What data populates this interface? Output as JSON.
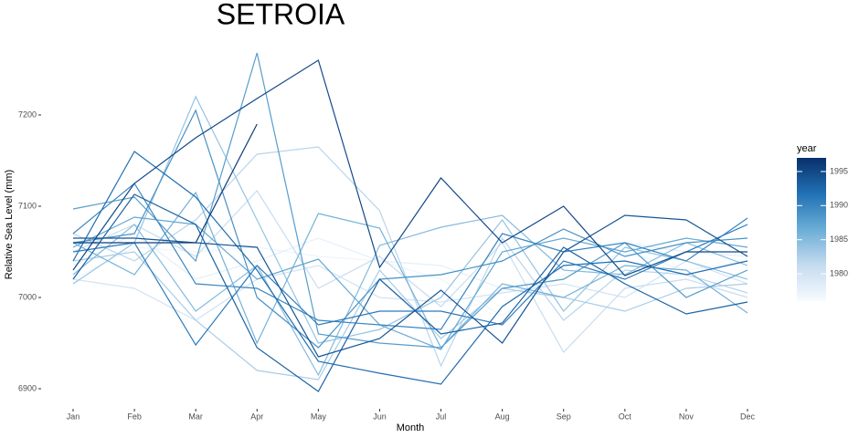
{
  "chart_data": {
    "type": "line",
    "title": "SETROIA",
    "xlabel": "Month",
    "ylabel": "Relative Sea Level (mm)",
    "categories": [
      "Jan",
      "Feb",
      "Mar",
      "Apr",
      "May",
      "Jun",
      "Jul",
      "Aug",
      "Sep",
      "Oct",
      "Nov",
      "Dec"
    ],
    "ylim": [
      6880,
      7280
    ],
    "yticks": [
      6900,
      7000,
      7100,
      7200
    ],
    "grid": false,
    "legend": {
      "title": "year",
      "lim": [
        1976,
        1997
      ],
      "ticks": [
        1980,
        1985,
        1990,
        1995
      ],
      "colors": [
        "#f7fbff",
        "#c6dbef",
        "#6baed6",
        "#2171b5",
        "#08306b"
      ]
    },
    "series": [
      {
        "year": 1977,
        "values": [
          7020,
          7055,
          7050,
          7055,
          7045,
          7040,
          7020,
          6980,
          7025,
          7050,
          7030,
          7040
        ]
      },
      {
        "year": 1978,
        "values": [
          7035,
          7070,
          7020,
          7040,
          7065,
          7040,
          7035,
          7010,
          7020,
          7060,
          7050,
          7045
        ]
      },
      {
        "year": 1980,
        "values": [
          7020,
          7010,
          6975,
          7020,
          7035,
          7000,
          6995,
          7005,
          7015,
          7000,
          7040,
          7015
        ]
      },
      {
        "year": 1981,
        "values": [
          7050,
          7080,
          7045,
          7117,
          7010,
          7045,
          6990,
          7060,
          6940,
          7010,
          7020,
          7000
        ]
      },
      {
        "year": 1982,
        "values": [
          7070,
          7040,
          7085,
          7157,
          7165,
          7095,
          6925,
          7065,
          6975,
          7030,
          7025,
          7005
        ]
      },
      {
        "year": 1983,
        "values": [
          7040,
          7050,
          6975,
          6920,
          6910,
          7030,
          6955,
          7010,
          7000,
          6985,
          7010,
          7015
        ]
      },
      {
        "year": 1984,
        "values": [
          7015,
          7060,
          7220,
          7085,
          6950,
          6965,
          7000,
          7085,
          6985,
          7055,
          7040,
          7020
        ]
      },
      {
        "year": 1985,
        "values": [
          7025,
          7080,
          6985,
          7035,
          6915,
          7057,
          7077,
          7090,
          7030,
          7025,
          7060,
          7035
        ]
      },
      {
        "year": 1986,
        "values": [
          7060,
          7025,
          7115,
          6950,
          7092,
          7076,
          6945,
          7015,
          7000,
          7035,
          7030,
          6983
        ]
      },
      {
        "year": 1987,
        "values": [
          7055,
          7088,
          7080,
          7020,
          7042,
          6970,
          6943,
          7050,
          7065,
          7050,
          7065,
          7055
        ]
      },
      {
        "year": 1988,
        "values": [
          7097,
          7110,
          7040,
          7268,
          6960,
          6950,
          6945,
          7010,
          7020,
          7060,
          7000,
          7030
        ]
      },
      {
        "year": 1989,
        "values": [
          7060,
          7070,
          7205,
          7000,
          6945,
          7020,
          7025,
          7040,
          7075,
          7045,
          7060,
          7065
        ]
      },
      {
        "year": 1990,
        "values": [
          7070,
          7125,
          7015,
          7010,
          6975,
          6970,
          6965,
          7070,
          7050,
          7060,
          7040,
          7087
        ]
      },
      {
        "year": 1991,
        "values": [
          7050,
          7060,
          6948,
          7035,
          6970,
          6985,
          6985,
          6970,
          7040,
          7020,
          7050,
          7080
        ]
      },
      {
        "year": 1992,
        "values": [
          7040,
          7160,
          7110,
          7030,
          6930,
          6917,
          6905,
          6990,
          7035,
          7040,
          7025,
          7040
        ]
      },
      {
        "year": 1993,
        "values": [
          7020,
          7113,
          7080,
          6945,
          6897,
          7020,
          6960,
          6972,
          7055,
          7015,
          6982,
          6995
        ]
      },
      {
        "year": 1994,
        "values": [
          7065,
          7065,
          7060,
          7055,
          6935,
          6955,
          7008,
          6950,
          7050,
          7090,
          7085,
          7045
        ]
      },
      {
        "year": 1995,
        "values": [
          7030,
          7125,
          7175,
          7218,
          7260,
          7033,
          7131,
          7060,
          7100,
          7024,
          7050,
          7050
        ]
      },
      {
        "year": 1996,
        "values": [
          7060,
          7060,
          7060,
          7190,
          null,
          null,
          null,
          null,
          null,
          null,
          null,
          null
        ]
      }
    ]
  }
}
